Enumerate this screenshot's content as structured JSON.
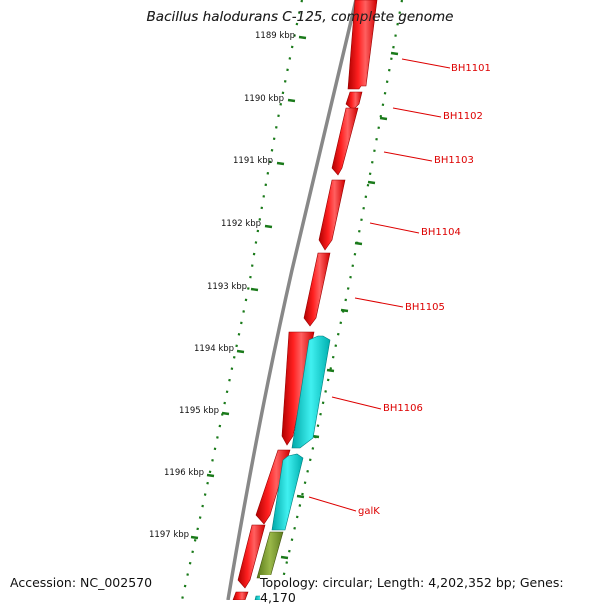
{
  "title": "Bacillus halodurans C-125, complete genome",
  "accession_text": "Accession: NC_002570",
  "topology_text": "Topology: circular; Length: 4,202,352 bp; Genes: 4,170",
  "colors": {
    "backbone": "#888888",
    "ruler_dots": "#1a7a1a",
    "forward_gene": "#ff0000",
    "reverse_gene": "#00c8c8",
    "olive_gene": "#7a9a2a",
    "label": "#dd0000"
  },
  "ruler_ticks": [
    "1189 kbp",
    "1190 kbp",
    "1191 kbp",
    "1192 kbp",
    "1193 kbp",
    "1194 kbp",
    "1195 kbp",
    "1196 kbp",
    "1197 kbp"
  ],
  "gene_labels": [
    "BH1101",
    "BH1102",
    "BH1103",
    "BH1104",
    "BH1105",
    "BH1106",
    "galK"
  ]
}
